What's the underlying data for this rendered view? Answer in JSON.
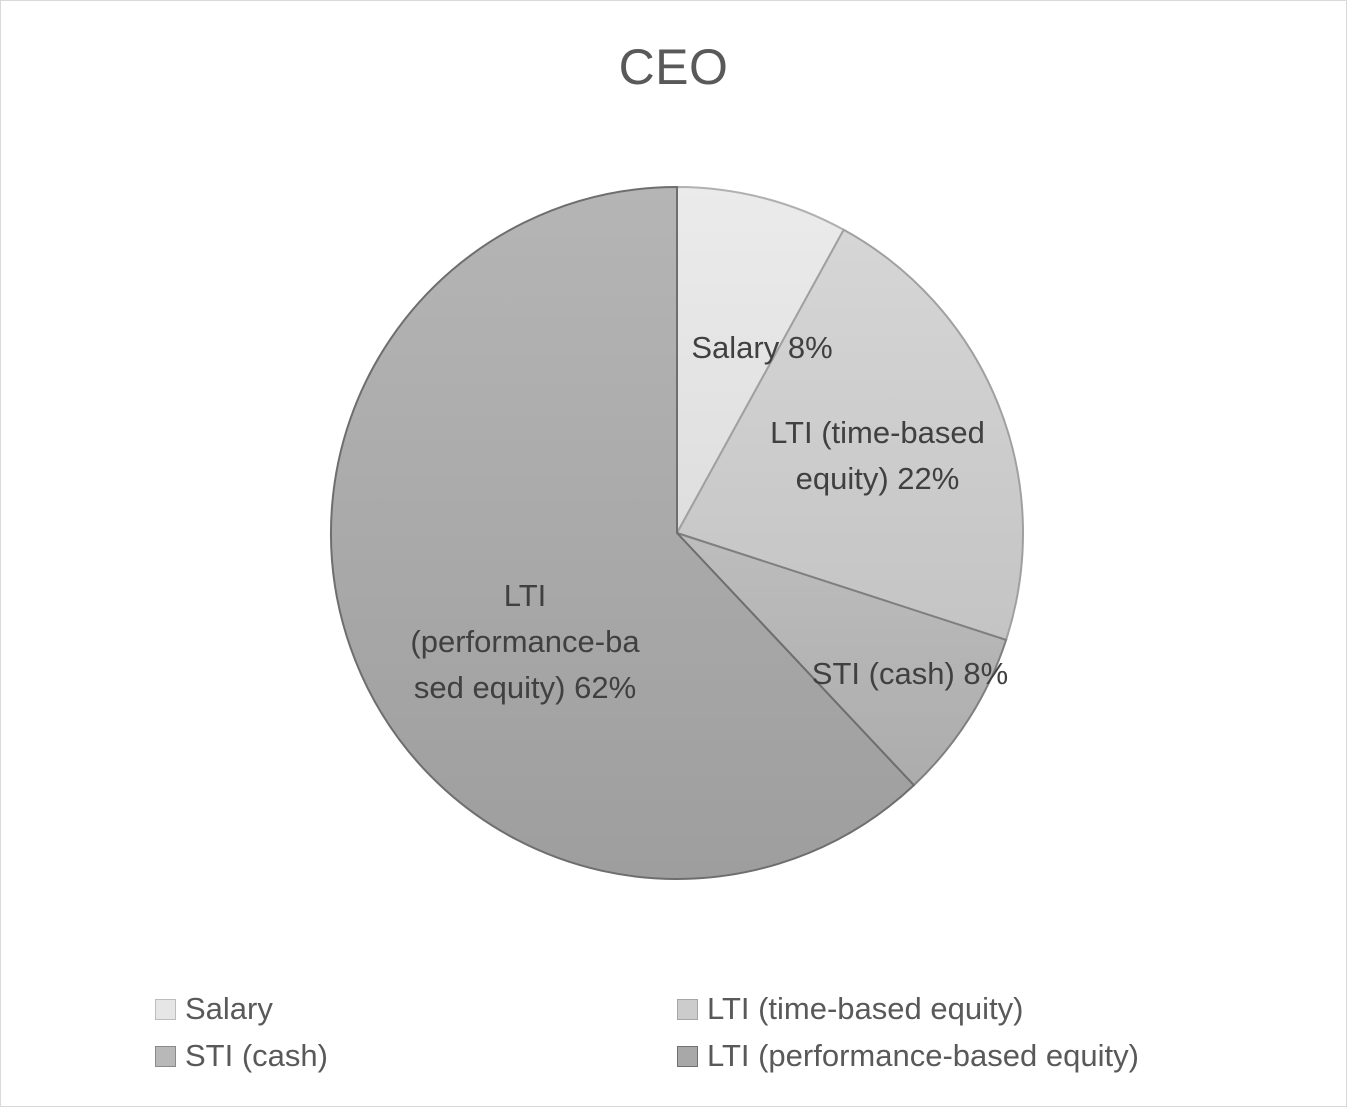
{
  "chart_data": {
    "type": "pie",
    "title": "CEO",
    "slices": [
      {
        "label": "Salary",
        "value": 8,
        "data_label": "Salary 8%",
        "color": "#e6e6e6",
        "border": "#b0b0b0"
      },
      {
        "label": "LTI (time-based equity)",
        "value": 22,
        "data_label": "LTI (time-based equity) 22%",
        "color": "#cccccc",
        "border": "#a0a0a0"
      },
      {
        "label": "STI (cash)",
        "value": 8,
        "data_label": "STI (cash) 8%",
        "color": "#b8b8b8",
        "border": "#808080"
      },
      {
        "label": "LTI (performance-based equity)",
        "value": 62,
        "data_label": "LTI (performance-based equity) 62%",
        "color": "#a8a8a8",
        "border": "#6e6e6e"
      }
    ],
    "legend_position": "bottom",
    "start_angle": "12 o'clock, clockwise"
  },
  "labels": {
    "salary": "Salary 8%",
    "lti_time_line1": "LTI (time-based",
    "lti_time_line2": "equity) 22%",
    "sti": "STI (cash) 8%",
    "lti_perf_line1": "LTI",
    "lti_perf_line2": "(performance-ba",
    "lti_perf_line3": "sed equity) 62%"
  },
  "legend": {
    "items": [
      "Salary",
      "LTI (time-based equity)",
      "STI (cash)",
      "LTI (performance-based equity)"
    ]
  }
}
